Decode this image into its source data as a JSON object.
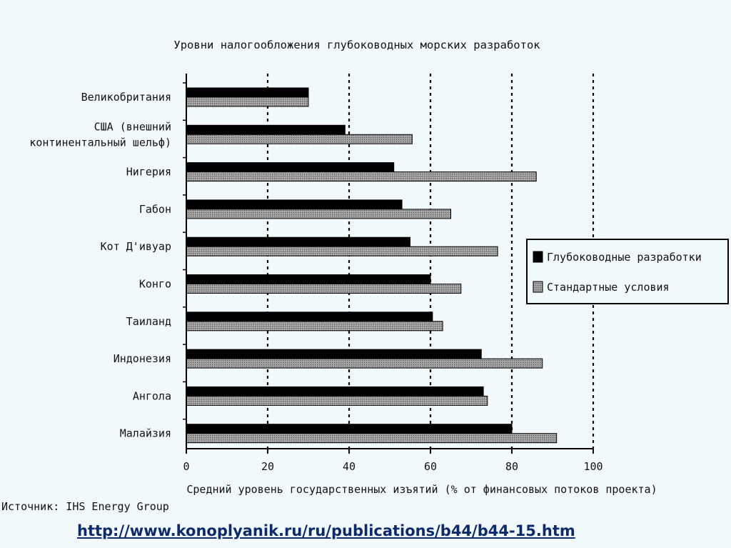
{
  "page": {
    "source": "Источник: IHS Energy Group",
    "url": "http://www.konoplyanik.ru/ru/publications/b44/b44-15.htm"
  },
  "colors": {
    "background": "#f1f9fd",
    "series_deepwater": "#000000",
    "series_standard": "#8a8a8a",
    "axis": "#000000",
    "url": "#0d2b6b"
  },
  "chart_data": {
    "type": "bar",
    "orientation": "horizontal",
    "title": "Уровни налогообложения глубоководных морских разработок",
    "xlabel": "Средний уровень государственных изъятий (% от финансовых потоков проекта)",
    "ylabel": "",
    "xlim": [
      0,
      100
    ],
    "xticks": [
      0,
      20,
      40,
      60,
      80,
      100
    ],
    "grid": "vertical dotted lines at 20, 40, 60, 80, 100",
    "legend_position": "right",
    "categories": [
      [
        "Великобритания"
      ],
      [
        "США (внешний",
        "континентальный шельф)"
      ],
      [
        "Нигерия"
      ],
      [
        "Габон"
      ],
      [
        "Кот Д'ивуар"
      ],
      [
        "Конго"
      ],
      [
        "Таиланд"
      ],
      [
        "Индонезия"
      ],
      [
        "Ангола"
      ],
      [
        "Малайзия"
      ]
    ],
    "series": [
      {
        "name": "Глубоководные разработки",
        "color": "#000000",
        "values": [
          30,
          39,
          51,
          53,
          55,
          60,
          60.5,
          72.5,
          73,
          80
        ]
      },
      {
        "name": "Стандартные условия",
        "color": "#8a8a8a",
        "values": [
          30,
          55.5,
          86,
          65,
          76.5,
          67.5,
          63,
          87.5,
          74,
          91
        ]
      }
    ]
  }
}
